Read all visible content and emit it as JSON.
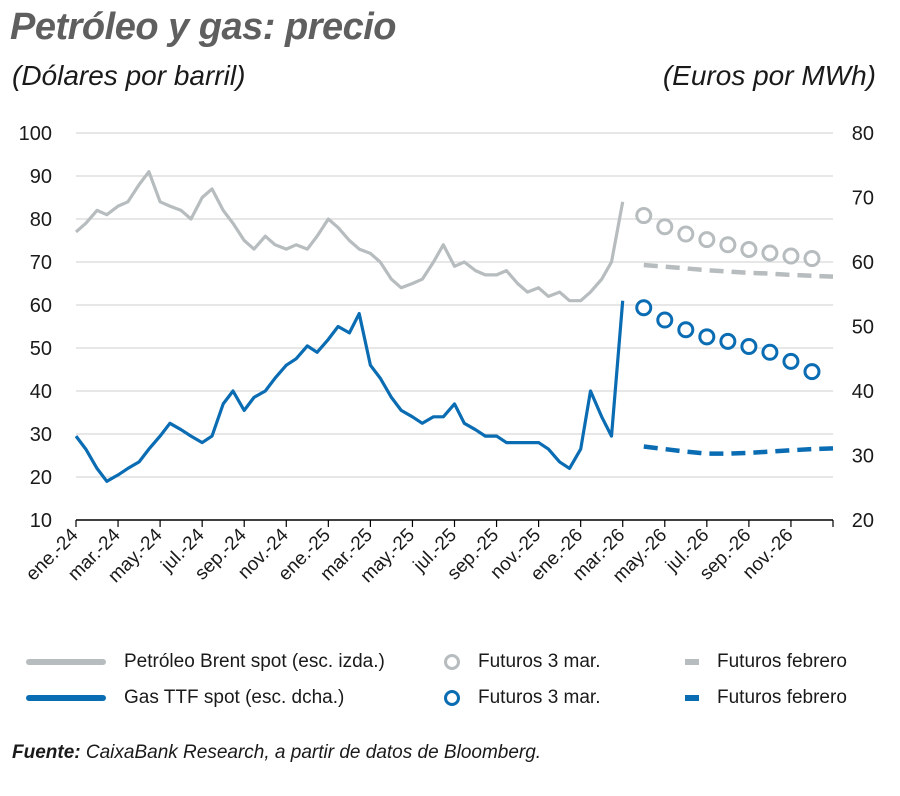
{
  "title": "Petróleo y gas: precio",
  "unit_left": "(Dólares por barril)",
  "unit_right": "(Euros por MWh)",
  "source": {
    "label": "Fuente:",
    "text": " CaixaBank Research, a partir de datos de Bloomberg."
  },
  "colors": {
    "brent": "#b7bcbe",
    "ttf": "#0a6cb2",
    "axis": "#000000"
  },
  "legend": [
    {
      "label": "Petróleo Brent spot (esc. izda.)",
      "symbol": "line",
      "color": "#b7bcbe"
    },
    {
      "label": "Futuros 3 mar.",
      "symbol": "circle",
      "color": "#b7bcbe"
    },
    {
      "label": "Futuros febrero",
      "symbol": "dash",
      "color": "#b7bcbe"
    },
    {
      "label": "Gas TTF spot (esc. dcha.)",
      "symbol": "line",
      "color": "#0a6cb2"
    },
    {
      "label": "Futuros 3 mar.",
      "symbol": "circle",
      "color": "#0a6cb2"
    },
    {
      "label": "Futuros febrero",
      "symbol": "dash",
      "color": "#0a6cb2"
    }
  ],
  "chart_data": {
    "type": "line",
    "title": "Petróleo y gas: precio",
    "grid": true,
    "x_tick_labels": [
      "ene.-24",
      "mar.-24",
      "may.-24",
      "jul.-24",
      "sep.-24",
      "nov.-24",
      "ene.-25",
      "mar.-25",
      "may.-25",
      "jul.-25",
      "sep.-25",
      "nov.-25",
      "ene.-26",
      "mar.-26",
      "may.-26",
      "jul.-26",
      "sep.-26",
      "nov.-26"
    ],
    "left_axis": {
      "label": "(Dólares por barril)",
      "range": [
        10,
        100
      ],
      "ticks": [
        10,
        20,
        30,
        40,
        50,
        60,
        70,
        80,
        90,
        100
      ]
    },
    "right_axis": {
      "label": "(Euros por MWh)",
      "range": [
        20,
        80
      ],
      "ticks": [
        20,
        30,
        40,
        50,
        60,
        70,
        80
      ]
    },
    "series": [
      {
        "name": "Petróleo Brent spot (esc. izda.)",
        "axis": "left",
        "style": "line",
        "x": [
          "2024-01",
          "2024-01-15",
          "2024-02",
          "2024-02-15",
          "2024-03",
          "2024-03-15",
          "2024-04",
          "2024-04-15",
          "2024-05",
          "2024-05-15",
          "2024-06",
          "2024-06-15",
          "2024-07",
          "2024-07-15",
          "2024-08",
          "2024-08-15",
          "2024-09",
          "2024-09-15",
          "2024-10",
          "2024-10-15",
          "2024-11",
          "2024-11-15",
          "2024-12",
          "2024-12-15",
          "2025-01",
          "2025-01-15",
          "2025-02",
          "2025-02-15",
          "2025-03",
          "2025-03-15",
          "2025-04",
          "2025-04-15",
          "2025-05",
          "2025-05-15",
          "2025-06",
          "2025-06-15",
          "2025-07",
          "2025-07-15",
          "2025-08",
          "2025-08-15",
          "2025-09",
          "2025-09-15",
          "2025-10",
          "2025-10-15",
          "2025-11",
          "2025-11-15",
          "2025-12",
          "2025-12-15",
          "2026-01",
          "2026-01-15",
          "2026-02",
          "2026-02-15",
          "2026-03"
        ],
        "values": [
          77,
          79,
          82,
          81,
          83,
          84,
          88,
          91,
          84,
          83,
          82,
          80,
          85,
          87,
          82,
          79,
          75,
          73,
          76,
          74,
          73,
          74,
          73,
          76,
          80,
          78,
          75,
          73,
          72,
          70,
          66,
          64,
          65,
          66,
          70,
          74,
          69,
          70,
          68,
          67,
          67,
          68,
          65,
          63,
          64,
          62,
          63,
          61,
          61,
          63,
          66,
          70,
          84
        ]
      },
      {
        "name": "Futuros 3 mar.",
        "axis": "left",
        "style": "circle",
        "x": [
          "2026-04",
          "2026-05",
          "2026-06",
          "2026-07",
          "2026-08",
          "2026-09",
          "2026-10",
          "2026-11",
          "2026-12"
        ],
        "values": [
          80.8,
          78.2,
          76.5,
          75.2,
          74.0,
          72.9,
          72.1,
          71.4,
          70.8
        ]
      },
      {
        "name": "Futuros febrero",
        "axis": "left",
        "style": "dash",
        "x": [
          "2026-04",
          "2026-05",
          "2026-06",
          "2026-07",
          "2026-08",
          "2026-09",
          "2026-10",
          "2026-11",
          "2026-12",
          "2027-01"
        ],
        "values": [
          69.3,
          68.9,
          68.5,
          68.1,
          67.8,
          67.5,
          67.3,
          67.0,
          66.8,
          66.6
        ]
      },
      {
        "name": "Gas TTF spot (esc. dcha.)",
        "axis": "right",
        "style": "line",
        "x": [
          "2024-01",
          "2024-01-15",
          "2024-02",
          "2024-02-15",
          "2024-03",
          "2024-03-15",
          "2024-04",
          "2024-04-15",
          "2024-05",
          "2024-05-15",
          "2024-06",
          "2024-06-15",
          "2024-07",
          "2024-07-15",
          "2024-08",
          "2024-08-15",
          "2024-09",
          "2024-09-15",
          "2024-10",
          "2024-10-15",
          "2024-11",
          "2024-11-15",
          "2024-12",
          "2024-12-15",
          "2025-01",
          "2025-01-15",
          "2025-02",
          "2025-02-15",
          "2025-03",
          "2025-03-15",
          "2025-04",
          "2025-04-15",
          "2025-05",
          "2025-05-15",
          "2025-06",
          "2025-06-15",
          "2025-07",
          "2025-07-15",
          "2025-08",
          "2025-08-15",
          "2025-09",
          "2025-09-15",
          "2025-10",
          "2025-10-15",
          "2025-11",
          "2025-11-15",
          "2025-12",
          "2025-12-15",
          "2026-01",
          "2026-01-15",
          "2026-02",
          "2026-02-15",
          "2026-03"
        ],
        "values": [
          33,
          31,
          28,
          26,
          27,
          28,
          29,
          31,
          33,
          35,
          34,
          33,
          32,
          33,
          38,
          40,
          37,
          39,
          40,
          42,
          44,
          45,
          47,
          46,
          48,
          50,
          49,
          52,
          44,
          42,
          39,
          37,
          36,
          35,
          36,
          36,
          38,
          35,
          34,
          33,
          33,
          32,
          32,
          32,
          32,
          31,
          29,
          28,
          31,
          40,
          36,
          33,
          54
        ]
      },
      {
        "name": "Futuros 3 mar.",
        "axis": "right",
        "style": "circle",
        "x": [
          "2026-04",
          "2026-05",
          "2026-06",
          "2026-07",
          "2026-08",
          "2026-09",
          "2026-10",
          "2026-11",
          "2026-12"
        ],
        "values": [
          52.9,
          51.0,
          49.5,
          48.4,
          47.7,
          46.9,
          46.0,
          44.6,
          43.0
        ]
      },
      {
        "name": "Futuros febrero",
        "axis": "right",
        "style": "dash",
        "x": [
          "2026-04",
          "2026-05",
          "2026-06",
          "2026-07",
          "2026-08",
          "2026-09",
          "2026-10",
          "2026-11",
          "2026-12",
          "2027-01"
        ],
        "values": [
          31.4,
          31.0,
          30.6,
          30.3,
          30.3,
          30.4,
          30.6,
          30.8,
          31.0,
          31.1
        ]
      }
    ]
  }
}
